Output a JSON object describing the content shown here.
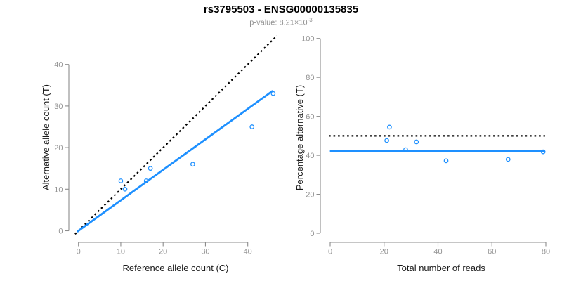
{
  "header": {
    "title": "rs3795503 - ENSG00000135835",
    "pvalue_prefix": "p-value: 8.21×10",
    "pvalue_exponent": "-3"
  },
  "colors": {
    "accent_blue": "#1E90FF",
    "dotted_black": "#000000",
    "axis_line": "#8c8c8c",
    "tick_label": "#949494",
    "axis_title": "#1a1a1a",
    "subtitle_gray": "#909090"
  },
  "chart_data": [
    {
      "type": "scatter",
      "panel": "left",
      "xlabel": "Reference allele count (C)",
      "ylabel": "Alternative allele count (T)",
      "xticks": [
        0,
        10,
        20,
        30,
        40
      ],
      "yticks": [
        0,
        10,
        20,
        30,
        40
      ],
      "xlim": [
        -1.8,
        47.5
      ],
      "ylim": [
        -1.5,
        47
      ],
      "grid": false,
      "legend": "none",
      "points": [
        [
          10,
          12
        ],
        [
          11,
          10
        ],
        [
          16,
          12
        ],
        [
          17,
          15
        ],
        [
          27,
          16
        ],
        [
          41,
          25
        ],
        [
          46,
          33
        ]
      ],
      "lines": [
        {
          "name": "identity-line",
          "style": "dotted",
          "color": "#000000",
          "x1": -0.8,
          "y1": -0.8,
          "x2": 48,
          "y2": 48
        },
        {
          "name": "fit-line",
          "style": "solid",
          "color": "#1E90FF",
          "x1": -0.3,
          "y1": -0.22,
          "x2": 45.9,
          "y2": 33.65
        }
      ]
    },
    {
      "type": "scatter",
      "panel": "right",
      "xlabel": "Total number of reads",
      "ylabel": "Percentage alternative (T)",
      "xticks": [
        0,
        20,
        40,
        60,
        80
      ],
      "yticks": [
        0,
        20,
        40,
        60,
        80,
        100
      ],
      "xlim": [
        -3,
        83
      ],
      "ylim": [
        0,
        100
      ],
      "grid": false,
      "legend": "none",
      "points": [
        [
          22,
          54.5
        ],
        [
          21,
          47.6
        ],
        [
          28,
          42.9
        ],
        [
          32,
          46.9
        ],
        [
          43,
          37.2
        ],
        [
          66,
          37.9
        ],
        [
          79,
          41.8
        ]
      ],
      "lines": [
        {
          "name": "fifty-percent-line",
          "style": "dotted",
          "color": "#000000",
          "x1": -0.5,
          "y1": 50,
          "x2": 79.7,
          "y2": 50
        },
        {
          "name": "mean-percentage-line",
          "style": "solid",
          "color": "#1E90FF",
          "x1": -0.1,
          "y1": 42.3,
          "x2": 79.7,
          "y2": 42.3
        }
      ]
    }
  ]
}
